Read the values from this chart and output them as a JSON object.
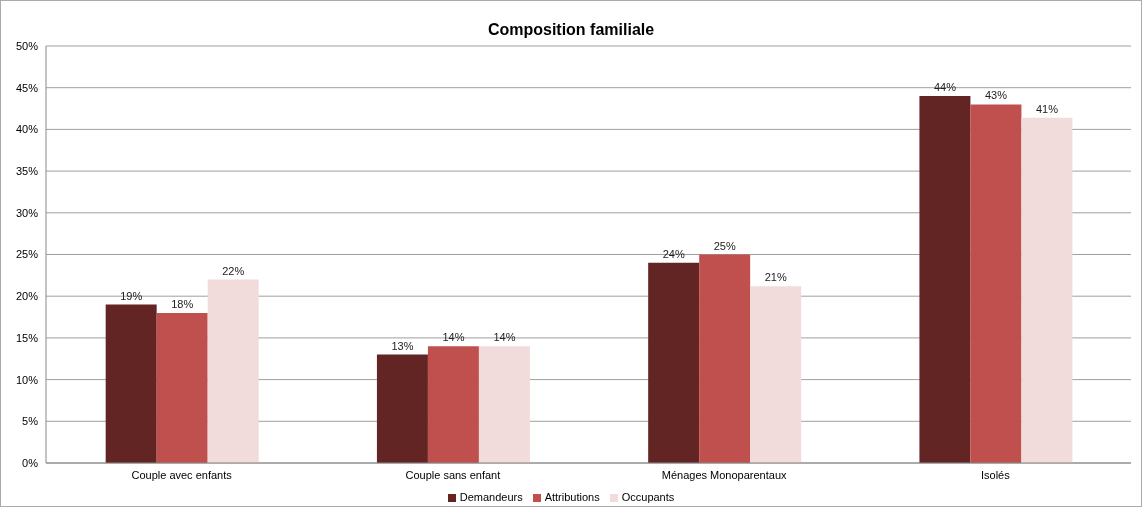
{
  "chart_data": {
    "type": "bar",
    "title": "Composition familiale",
    "categories": [
      "Couple avec enfants",
      "Couple sans enfant",
      "Ménages Monoparentaux",
      "Isolés"
    ],
    "series": [
      {
        "name": "Demandeurs",
        "color": "#632523",
        "values": [
          19,
          13,
          24,
          44
        ],
        "value_labels": [
          "19%",
          "13%",
          "24%",
          "44%"
        ]
      },
      {
        "name": "Attributions",
        "color": "#c0504d",
        "values": [
          18,
          14,
          25,
          43
        ],
        "value_labels": [
          "18%",
          "14%",
          "25%",
          "43%"
        ]
      },
      {
        "name": "Occupants",
        "color": "#f2dcdb",
        "values": [
          22,
          14,
          21.2,
          41.4
        ],
        "value_labels": [
          "22%",
          "14%",
          "21%",
          "41%"
        ]
      }
    ],
    "ylim": [
      0,
      50
    ],
    "yticks": [
      {
        "value": 0,
        "label": "0%"
      },
      {
        "value": 5,
        "label": "5%"
      },
      {
        "value": 10,
        "label": "10%"
      },
      {
        "value": 15,
        "label": "15%"
      },
      {
        "value": 20,
        "label": "20%"
      },
      {
        "value": 25,
        "label": "25%"
      },
      {
        "value": 30,
        "label": "30%"
      },
      {
        "value": 35,
        "label": "35%"
      },
      {
        "value": 40,
        "label": "40%"
      },
      {
        "value": 45,
        "label": "45%"
      },
      {
        "value": 50,
        "label": "50%"
      }
    ],
    "grid": "y",
    "legend": "bottom"
  }
}
